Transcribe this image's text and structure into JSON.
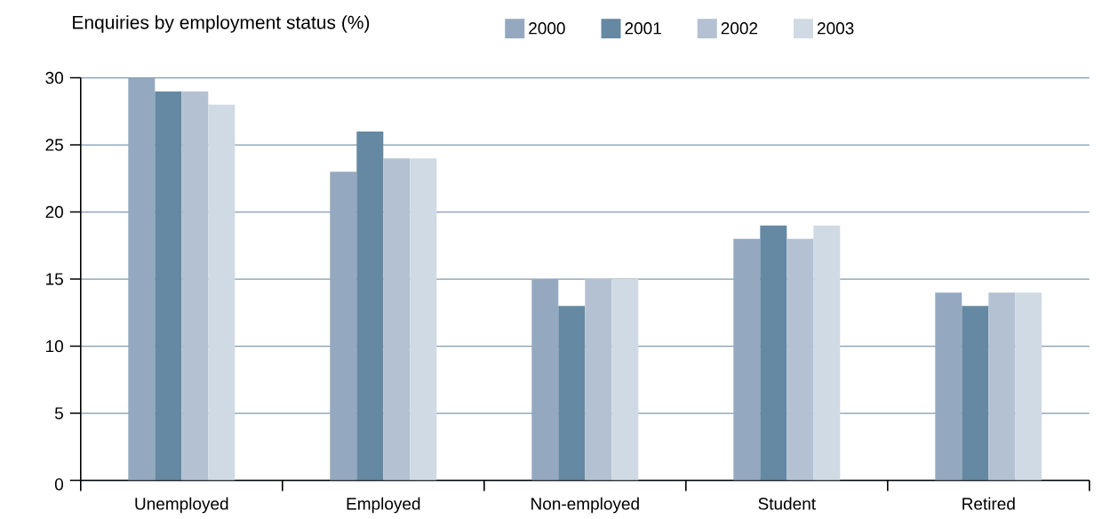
{
  "chart_data": {
    "type": "bar",
    "title": "Enquiries by employment status (%)",
    "categories": [
      "Unemployed",
      "Employed",
      "Non-employed",
      "Student",
      "Retired"
    ],
    "series": [
      {
        "name": "2000",
        "color": "#94a9bf",
        "values": [
          30,
          23,
          15,
          18,
          14
        ]
      },
      {
        "name": "2001",
        "color": "#6589a3",
        "values": [
          29,
          26,
          13,
          19,
          13
        ]
      },
      {
        "name": "2002",
        "color": "#b3c1d2",
        "values": [
          29,
          24,
          15,
          18,
          14
        ]
      },
      {
        "name": "2003",
        "color": "#d0dae4",
        "values": [
          28,
          24,
          15,
          19,
          14
        ]
      }
    ],
    "ylim": [
      0,
      30
    ],
    "yticks": [
      0,
      5,
      10,
      15,
      20,
      25,
      30
    ],
    "grid": "y",
    "legend": "top"
  }
}
